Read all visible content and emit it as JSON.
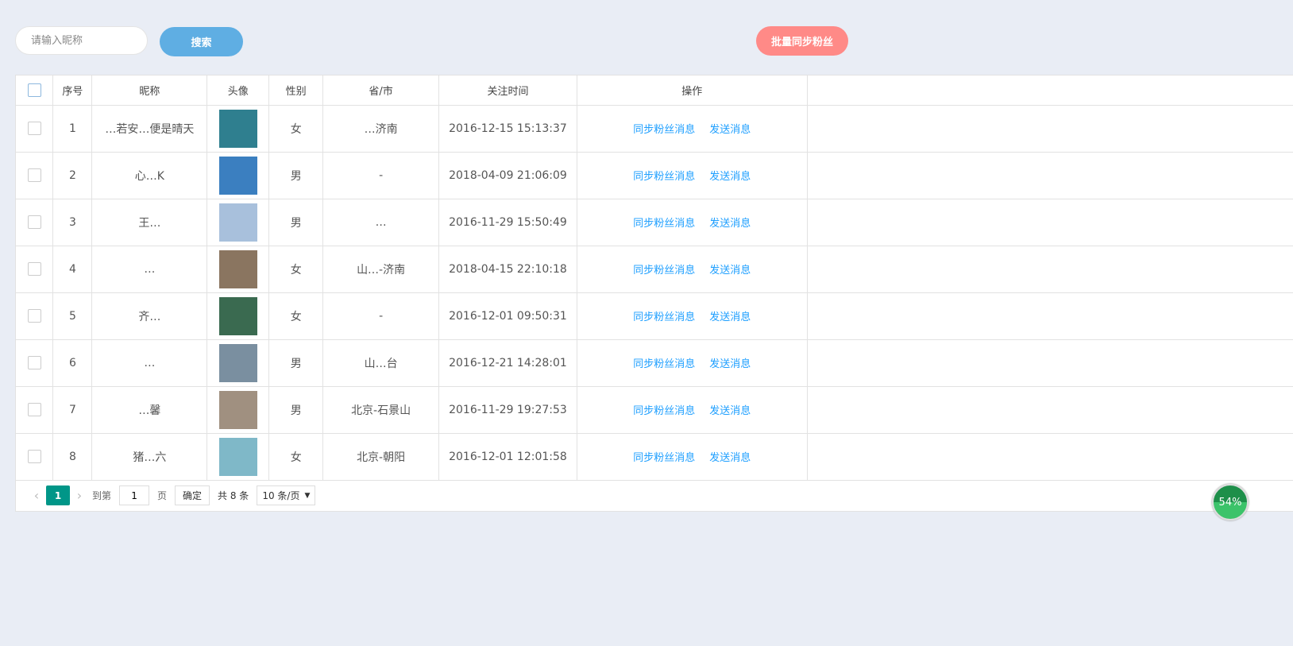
{
  "toolbar": {
    "search_placeholder": "请输入昵称",
    "search_label": "搜索",
    "batch_sync_label": "批量同步粉丝"
  },
  "table": {
    "headers": [
      "序号",
      "昵称",
      "头像",
      "性别",
      "省/市",
      "关注时间",
      "操作"
    ],
    "rows": [
      {
        "index": "1",
        "nickname": "…若安…便是晴天",
        "gender": "女",
        "region": "…济南",
        "time": "2016-12-15 15:13:37",
        "avatar_color": "#2f7f8f"
      },
      {
        "index": "2",
        "nickname": "心…K",
        "gender": "男",
        "region": "-",
        "time": "2018-04-09 21:06:09",
        "avatar_color": "#3b7fc0"
      },
      {
        "index": "3",
        "nickname": "王…",
        "gender": "男",
        "region": "…",
        "time": "2016-11-29 15:50:49",
        "avatar_color": "#a8c0dc"
      },
      {
        "index": "4",
        "nickname": "…",
        "gender": "女",
        "region": "山…-济南",
        "time": "2018-04-15 22:10:18",
        "avatar_color": "#8a7560"
      },
      {
        "index": "5",
        "nickname": "齐…",
        "gender": "女",
        "region": "-",
        "time": "2016-12-01 09:50:31",
        "avatar_color": "#3a6a50"
      },
      {
        "index": "6",
        "nickname": "…",
        "gender": "男",
        "region": "山…台",
        "time": "2016-12-21 14:28:01",
        "avatar_color": "#7a8fa0"
      },
      {
        "index": "7",
        "nickname": "…馨",
        "gender": "男",
        "region": "北京-石景山",
        "time": "2016-11-29 19:27:53",
        "avatar_color": "#a09080"
      },
      {
        "index": "8",
        "nickname": "猪…六",
        "gender": "女",
        "region": "北京-朝阳",
        "time": "2016-12-01 12:01:58",
        "avatar_color": "#7fb8c8"
      }
    ],
    "action_sync": "同步粉丝消息",
    "action_send": "发送消息"
  },
  "pager": {
    "current_page": "1",
    "goto_prefix": "到第",
    "goto_value": "1",
    "goto_suffix": "页",
    "confirm": "确定",
    "total": "共 8 条",
    "page_size": "10 条/页"
  },
  "progress_badge": "54%"
}
